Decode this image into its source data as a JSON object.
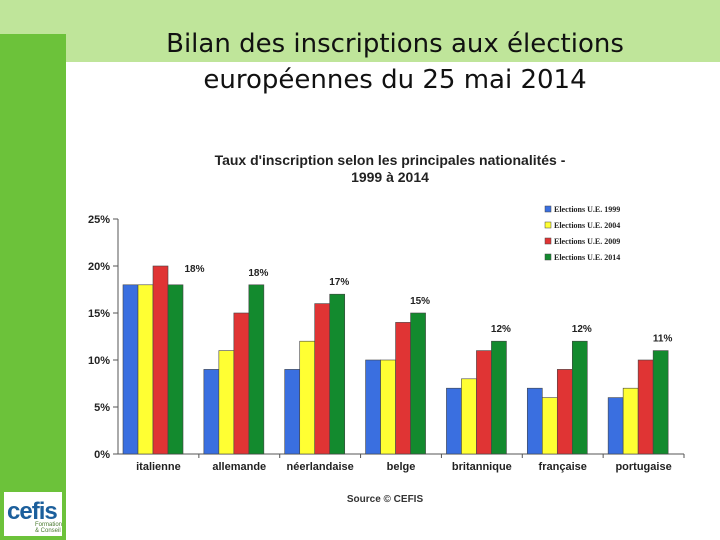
{
  "slide": {
    "title_line1": "Bilan des inscriptions aux élections",
    "title_line2": "européennes du 25 mai 2014",
    "logo_text": "cefis",
    "logo_subtext": "Formation & Conseil",
    "colors": {
      "band": "#bfe59a",
      "sidebar": "#6cc23a"
    }
  },
  "chart_data": {
    "type": "bar",
    "title_line1": "Taux d'inscription selon les principales nationalités -",
    "title_line2": "1999 à 2014",
    "source": "Source © CEFIS",
    "ylim": [
      0,
      25
    ],
    "yticks": [
      "0%",
      "5%",
      "10%",
      "15%",
      "20%",
      "25%"
    ],
    "ytick_values": [
      0,
      5,
      10,
      15,
      20,
      25
    ],
    "categories": [
      "italienne",
      "allemande",
      "néerlandaise",
      "belge",
      "britannique",
      "française",
      "portugaise"
    ],
    "series": [
      {
        "name": "Elections U.E. 1999",
        "color": "#3a6fe0",
        "values": [
          18,
          9,
          9,
          10,
          7,
          7,
          6
        ]
      },
      {
        "name": "Elections U.E. 2004",
        "color": "#ffff33",
        "values": [
          18,
          11,
          12,
          10,
          8,
          6,
          7
        ]
      },
      {
        "name": "Elections U.E. 2009",
        "color": "#e03434",
        "values": [
          20,
          15,
          16,
          14,
          11,
          9,
          10
        ]
      },
      {
        "name": "Elections U.E. 2014",
        "color": "#138a2e",
        "values": [
          18,
          18,
          17,
          15,
          12,
          12,
          11
        ]
      }
    ],
    "data_labels": [
      "18%",
      "18%",
      "17%",
      "15%",
      "12%",
      "12%",
      "11%"
    ]
  }
}
